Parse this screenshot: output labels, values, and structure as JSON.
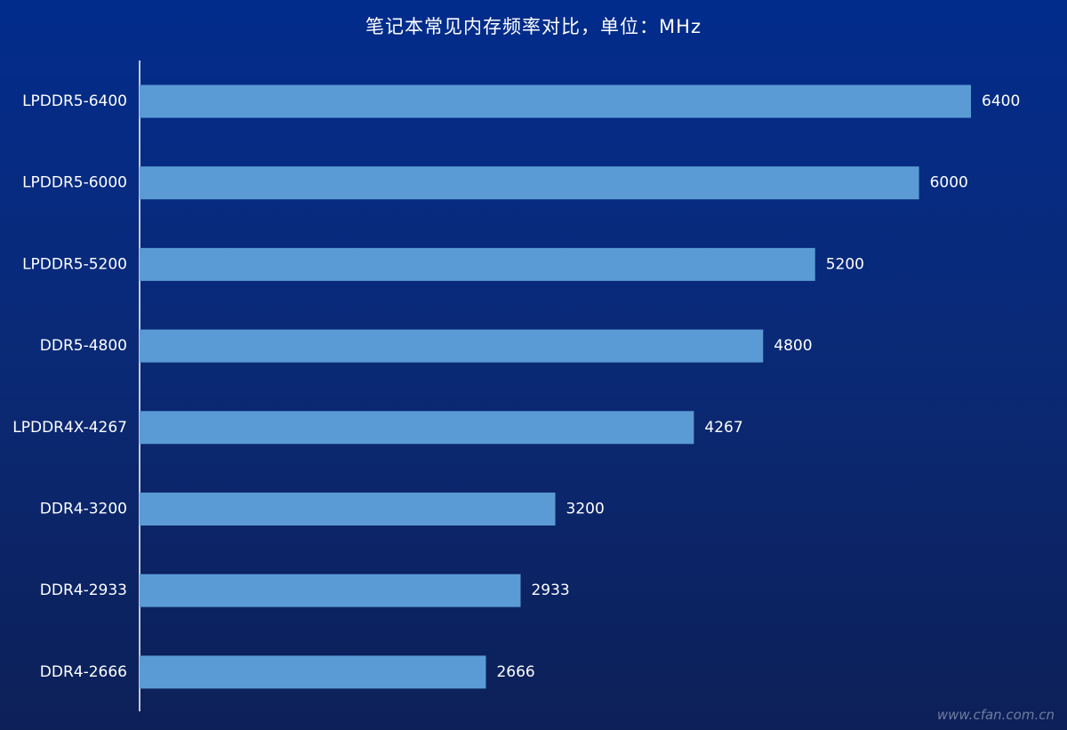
{
  "title": "笔记本常见内存频率对比，单位：MHz",
  "watermark": "www.cfan.com.cn",
  "colors": {
    "bar": "#5b9bd5",
    "axis": "#ffffff",
    "text": "#ffffff"
  },
  "chart_data": {
    "type": "bar",
    "orientation": "horizontal",
    "title": "笔记本常见内存频率对比，单位：MHz",
    "categories": [
      "LPDDR5-6400",
      "LPDDR5-6000",
      "LPDDR5-5200",
      "DDR5-4800",
      "LPDDR4X-4267",
      "DDR4-3200",
      "DDR4-2933",
      "DDR4-2666"
    ],
    "values": [
      6400,
      6000,
      5200,
      4800,
      4267,
      3200,
      2933,
      2666
    ],
    "xlim": [
      0,
      6400
    ],
    "data_labels": true,
    "grid": false,
    "legend": "none"
  }
}
